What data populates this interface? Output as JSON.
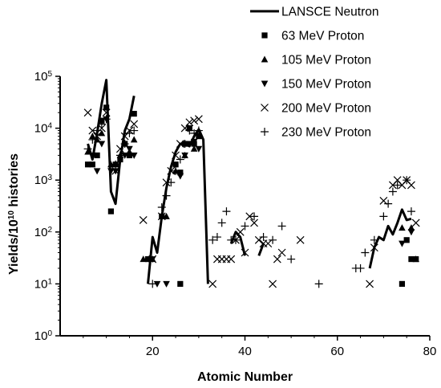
{
  "chart_data": {
    "type": "scatter",
    "xlabel": "Atomic Number",
    "ylabel": {
      "text": "Yields/10",
      "sup": "10",
      "suffix": " histories"
    },
    "xlim": [
      0,
      80
    ],
    "ylim_log10": [
      0,
      5
    ],
    "y_scale": "log",
    "x_ticks": [
      {
        "value": 20,
        "label": "20"
      },
      {
        "value": 40,
        "label": "40"
      },
      {
        "value": 60,
        "label": "60"
      },
      {
        "value": 80,
        "label": "80"
      }
    ],
    "y_ticks": [
      {
        "exp": 0,
        "base": "10",
        "sup": "0"
      },
      {
        "exp": 1,
        "base": "10",
        "sup": "1"
      },
      {
        "exp": 2,
        "base": "10",
        "sup": "2"
      },
      {
        "exp": 3,
        "base": "10",
        "sup": "3"
      },
      {
        "exp": 4,
        "base": "10",
        "sup": "4"
      },
      {
        "exp": 5,
        "base": "10",
        "sup": "5"
      }
    ],
    "grid": false,
    "legend_position": "top-right",
    "series": [
      {
        "name": "LANSCE Neutron",
        "marker": "line",
        "segments": [
          [
            [
              6,
              5000
            ],
            [
              7,
              2500
            ],
            [
              8,
              8000
            ],
            [
              9,
              30000
            ],
            [
              10,
              85000
            ],
            [
              11,
              600
            ],
            [
              12,
              350
            ],
            [
              13,
              2500
            ],
            [
              14,
              9000
            ],
            [
              15,
              15000
            ],
            [
              16,
              42000
            ]
          ],
          [
            [
              19,
              10
            ],
            [
              20,
              80
            ],
            [
              21,
              40
            ],
            [
              22,
              200
            ],
            [
              23,
              700
            ],
            [
              24,
              1800
            ],
            [
              25,
              3500
            ],
            [
              26,
              5000
            ],
            [
              27,
              5000
            ],
            [
              28,
              4500
            ],
            [
              29,
              7000
            ],
            [
              30,
              9500
            ],
            [
              31,
              6000
            ],
            [
              32,
              10
            ]
          ],
          [
            [
              37,
              60
            ],
            [
              38,
              100
            ],
            [
              39,
              80
            ],
            [
              40,
              35
            ]
          ],
          [
            [
              43,
              35
            ],
            [
              44,
              60
            ]
          ],
          [
            [
              67,
              20
            ],
            [
              68,
              50
            ],
            [
              69,
              80
            ],
            [
              70,
              70
            ],
            [
              71,
              130
            ],
            [
              72,
              90
            ],
            [
              73,
              150
            ],
            [
              74,
              270
            ],
            [
              75,
              170
            ],
            [
              76,
              180
            ]
          ]
        ]
      },
      {
        "name": "63 MeV Proton",
        "marker": "square",
        "points": [
          [
            6,
            2000
          ],
          [
            7,
            2000
          ],
          [
            8,
            3000
          ],
          [
            9,
            14000
          ],
          [
            10,
            25000
          ],
          [
            11,
            250
          ],
          [
            12,
            2000
          ],
          [
            13,
            2500
          ],
          [
            14,
            5000
          ],
          [
            15,
            3000
          ],
          [
            16,
            19000
          ],
          [
            19,
            30
          ],
          [
            22,
            200
          ],
          [
            25,
            2000
          ],
          [
            26,
            1400
          ],
          [
            27,
            5000
          ],
          [
            28,
            10000
          ],
          [
            29,
            5000
          ],
          [
            30,
            7000
          ],
          [
            26,
            10
          ],
          [
            74,
            10
          ],
          [
            75,
            70
          ],
          [
            76,
            30
          ],
          [
            77,
            30
          ]
        ]
      },
      {
        "name": "105 MeV Proton",
        "marker": "triangle-up",
        "points": [
          [
            6,
            3500
          ],
          [
            7,
            7000
          ],
          [
            8,
            6000
          ],
          [
            9,
            8000
          ],
          [
            11,
            2000
          ],
          [
            13,
            3000
          ],
          [
            14,
            5000
          ],
          [
            15,
            3500
          ],
          [
            16,
            6000
          ],
          [
            18,
            30
          ],
          [
            20,
            30
          ],
          [
            23,
            200
          ],
          [
            25,
            1500
          ],
          [
            27,
            3000
          ],
          [
            29,
            4000
          ],
          [
            74,
            120
          ],
          [
            76,
            120
          ],
          [
            77,
            30
          ]
        ]
      },
      {
        "name": "150 MeV Proton",
        "marker": "triangle-down",
        "points": [
          [
            7,
            3000
          ],
          [
            8,
            1500
          ],
          [
            9,
            5000
          ],
          [
            10,
            15000
          ],
          [
            11,
            1500
          ],
          [
            12,
            1500
          ],
          [
            14,
            3000
          ],
          [
            15,
            4000
          ],
          [
            16,
            3000
          ],
          [
            20,
            30
          ],
          [
            21,
            10
          ],
          [
            23,
            10
          ],
          [
            26,
            1200
          ],
          [
            27,
            3000
          ],
          [
            28,
            5000
          ],
          [
            29,
            5500
          ],
          [
            30,
            4000
          ],
          [
            74,
            60
          ],
          [
            76,
            100
          ]
        ]
      },
      {
        "name": "200 MeV Proton",
        "marker": "x",
        "points": [
          [
            6,
            20000
          ],
          [
            7,
            9000
          ],
          [
            8,
            7000
          ],
          [
            9,
            10000
          ],
          [
            10,
            20000
          ],
          [
            12,
            1500
          ],
          [
            13,
            4000
          ],
          [
            14,
            7000
          ],
          [
            15,
            9000
          ],
          [
            16,
            12000
          ],
          [
            18,
            170
          ],
          [
            20,
            30
          ],
          [
            22,
            200
          ],
          [
            23,
            900
          ],
          [
            24,
            1500
          ],
          [
            25,
            3000
          ],
          [
            26,
            5000
          ],
          [
            27,
            10000
          ],
          [
            28,
            13000
          ],
          [
            29,
            14000
          ],
          [
            30,
            15000
          ],
          [
            33,
            10
          ],
          [
            34,
            30
          ],
          [
            35,
            30
          ],
          [
            36,
            30
          ],
          [
            37,
            30
          ],
          [
            38,
            70
          ],
          [
            39,
            100
          ],
          [
            40,
            40
          ],
          [
            41,
            200
          ],
          [
            42,
            150
          ],
          [
            43,
            70
          ],
          [
            44,
            60
          ],
          [
            45,
            60
          ],
          [
            46,
            10
          ],
          [
            47,
            30
          ],
          [
            48,
            40
          ],
          [
            52,
            70
          ],
          [
            67,
            10
          ],
          [
            68,
            50
          ],
          [
            70,
            400
          ],
          [
            72,
            800
          ],
          [
            73,
            1000
          ],
          [
            74,
            800
          ],
          [
            75,
            1000
          ],
          [
            76,
            800
          ],
          [
            77,
            150
          ]
        ]
      },
      {
        "name": "230 MeV Proton",
        "marker": "plus",
        "points": [
          [
            6,
            4000
          ],
          [
            7,
            6000
          ],
          [
            8,
            9000
          ],
          [
            9,
            12000
          ],
          [
            10,
            15000
          ],
          [
            12,
            2000
          ],
          [
            13,
            3000
          ],
          [
            14,
            5000
          ],
          [
            15,
            8000
          ],
          [
            16,
            9000
          ],
          [
            20,
            10
          ],
          [
            22,
            300
          ],
          [
            23,
            500
          ],
          [
            24,
            900
          ],
          [
            25,
            1500
          ],
          [
            26,
            2500
          ],
          [
            27,
            5000
          ],
          [
            28,
            9000
          ],
          [
            29,
            8000
          ],
          [
            30,
            9000
          ],
          [
            33,
            70
          ],
          [
            34,
            80
          ],
          [
            35,
            150
          ],
          [
            36,
            250
          ],
          [
            37,
            70
          ],
          [
            38,
            70
          ],
          [
            40,
            130
          ],
          [
            42,
            200
          ],
          [
            44,
            80
          ],
          [
            46,
            70
          ],
          [
            48,
            130
          ],
          [
            50,
            30
          ],
          [
            56,
            10
          ],
          [
            64,
            20
          ],
          [
            65,
            20
          ],
          [
            66,
            40
          ],
          [
            68,
            70
          ],
          [
            70,
            200
          ],
          [
            71,
            350
          ],
          [
            72,
            600
          ],
          [
            73,
            800
          ],
          [
            75,
            1000
          ],
          [
            76,
            250
          ]
        ]
      }
    ]
  }
}
